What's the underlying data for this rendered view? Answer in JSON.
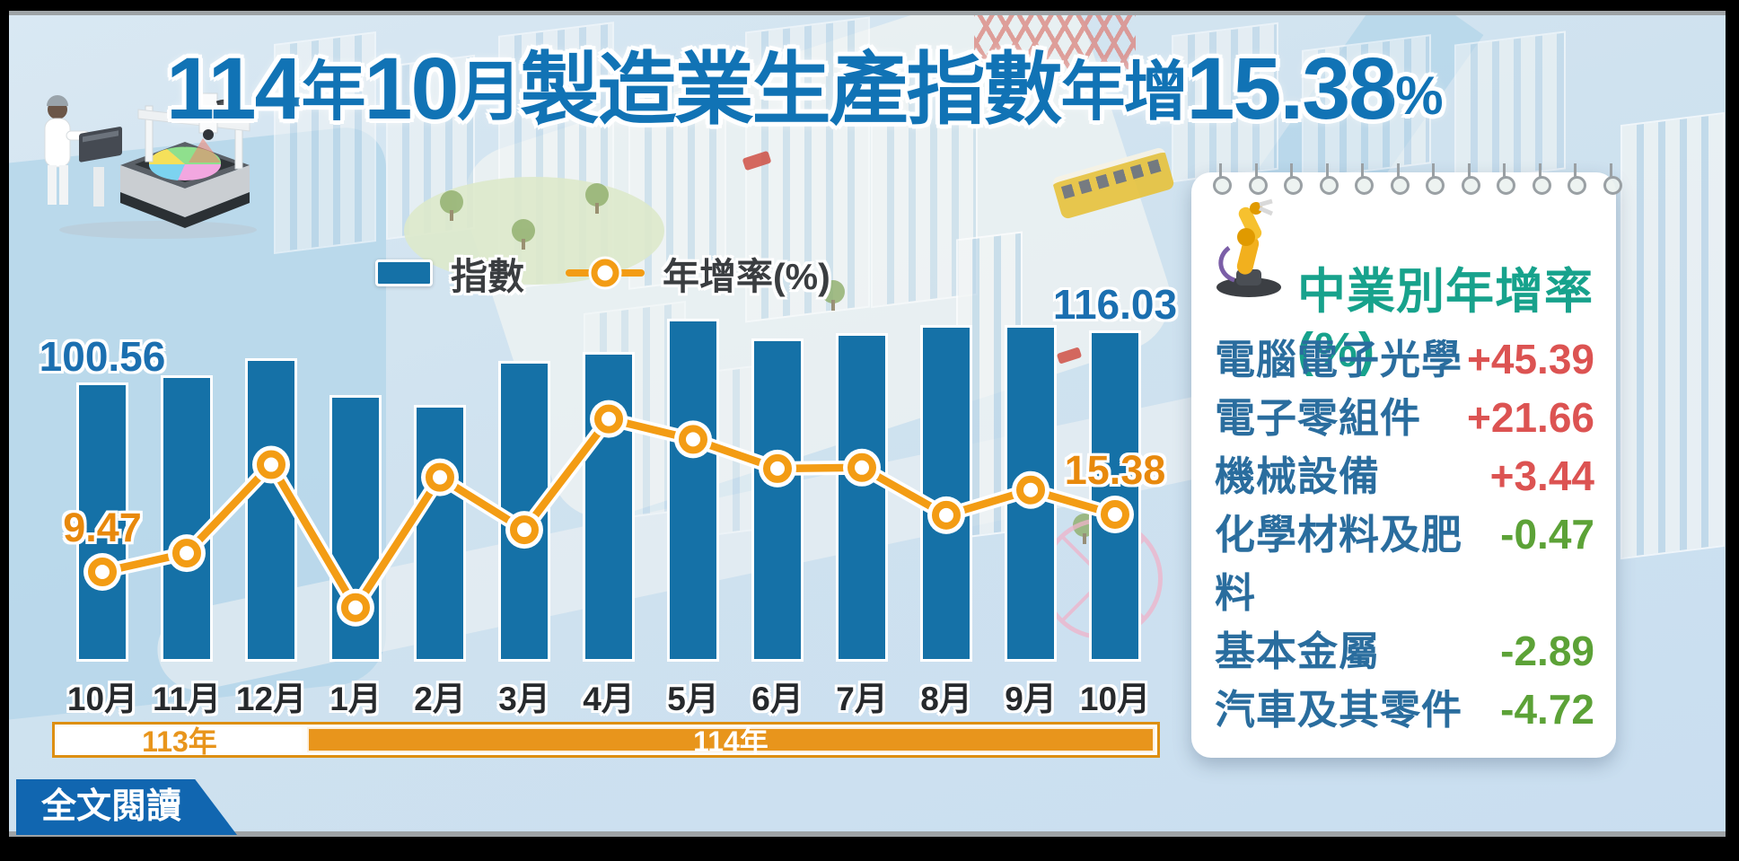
{
  "title": {
    "full_text": "114年10月製造業生產指數年增15.38%",
    "segments": [
      {
        "text": "114",
        "size": "num"
      },
      {
        "text": "年",
        "size": "cjk-sm"
      },
      {
        "text": "10",
        "size": "num"
      },
      {
        "text": "月",
        "size": "cjk-sm"
      },
      {
        "text": "製造業生產指數",
        "size": "cjk"
      },
      {
        "text": "年增",
        "size": "cjk-sm"
      },
      {
        "text": "15.38",
        "size": "num"
      },
      {
        "text": "%",
        "size": "pct"
      }
    ]
  },
  "legend": {
    "bar_label": "指數",
    "line_label": "年增率(%)"
  },
  "chart_data": {
    "type": "bar+line",
    "categories": [
      "10月",
      "11月",
      "12月",
      "1月",
      "2月",
      "3月",
      "4月",
      "5月",
      "6月",
      "7月",
      "8月",
      "9月",
      "10月"
    ],
    "year_bands": [
      {
        "label": "113年",
        "span": [
          0,
          2
        ]
      },
      {
        "label": "114年",
        "span": [
          3,
          12
        ]
      }
    ],
    "series": [
      {
        "name": "指數",
        "type": "bar",
        "values": [
          100.56,
          102.7,
          107.8,
          96.8,
          93.9,
          107.0,
          109.6,
          119.5,
          113.6,
          115.2,
          117.6,
          117.6,
          116.03
        ],
        "labeled_points": {
          "0": "100.56",
          "12": "116.03"
        }
      },
      {
        "name": "年增率(%)",
        "type": "line",
        "values": [
          9.47,
          11.4,
          20.5,
          5.8,
          19.2,
          13.8,
          25.2,
          23.1,
          20.1,
          20.2,
          15.3,
          17.9,
          15.38
        ],
        "labeled_points": {
          "0": "9.47",
          "12": "15.38"
        }
      }
    ],
    "legend_position": "top-center",
    "grid": false,
    "note_only_first_last_points_labeled": true
  },
  "panel": {
    "header": "中業別年增率(%)",
    "rows": [
      {
        "name": "電腦電子光學",
        "value": "+45.39",
        "direction": "up"
      },
      {
        "name": "電子零組件",
        "value": "+21.66",
        "direction": "up"
      },
      {
        "name": "機械設備",
        "value": "+3.44",
        "direction": "up"
      },
      {
        "name": "化學材料及肥料",
        "value": "-0.47",
        "direction": "down"
      },
      {
        "name": "基本金屬",
        "value": "-2.89",
        "direction": "down"
      },
      {
        "name": "汽車及其零件",
        "value": "-4.72",
        "direction": "down"
      }
    ]
  },
  "footer": {
    "read_more_label": "全文閱讀"
  },
  "icons": {
    "machine": "wafer-inspection-machine-illustration",
    "robot": "robot-arm-icon"
  },
  "colors": {
    "accent_blue": "#1571a7",
    "accent_orange": "#f39c14",
    "label_orange": "#e8890c",
    "title_blue": "#1173b5",
    "band_orange": "#e8951c",
    "teal": "#17a28c",
    "row_name_blue": "#2a6d9e",
    "positive_red": "#dc5352",
    "negative_green": "#5ca237",
    "button_blue": "#1166b0"
  }
}
